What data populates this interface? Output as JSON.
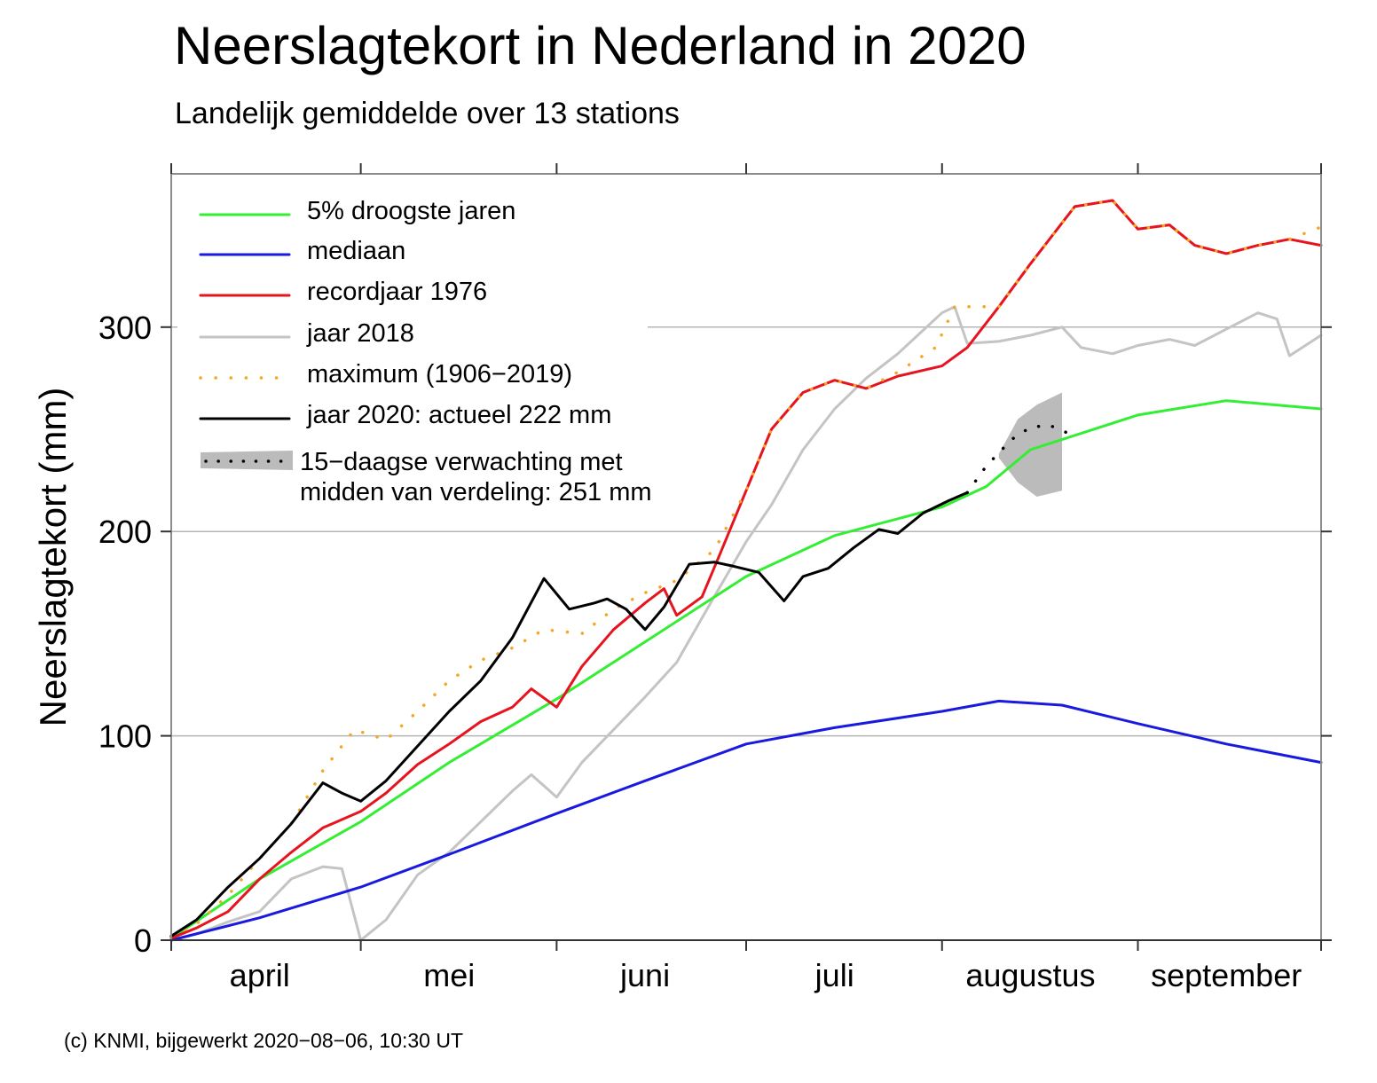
{
  "title": "Neerslagtekort in Nederland in 2020",
  "subtitle": "Landelijk gemiddelde over 13 stations",
  "footer": "(c) KNMI, bijgewerkt 2020−08−06, 10:30 UT",
  "colors": {
    "droogste": "#33ee33",
    "mediaan": "#1a1adf",
    "record": "#e6141e",
    "jaar2018": "#c4c4c4",
    "maximum": "#f5a623",
    "jaar2020": "#000000",
    "forecast_band": "#bbbbbb"
  },
  "chart_data": {
    "type": "line",
    "title": "Neerslagtekort in Nederland in 2020",
    "subtitle": "Landelijk gemiddelde over 13 stations",
    "ylabel": "Neerslagtekort (mm)",
    "xlabel": "",
    "x_unit": "date (2020)",
    "xlim": [
      "04-01",
      "09-30"
    ],
    "ylim": [
      0,
      375
    ],
    "yticks": [
      0,
      100,
      200,
      300
    ],
    "month_ticks": [
      "04-01",
      "05-01",
      "06-01",
      "07-01",
      "08-01",
      "09-01"
    ],
    "month_labels": [
      {
        "label": "april",
        "date": "04-15"
      },
      {
        "label": "mei",
        "date": "05-15"
      },
      {
        "label": "juni",
        "date": "06-15"
      },
      {
        "label": "juli",
        "date": "07-15"
      },
      {
        "label": "augustus",
        "date": "08-15"
      },
      {
        "label": "september",
        "date": "09-15"
      }
    ],
    "grid": true,
    "legend_position": "top-left",
    "legend": [
      {
        "key": "droogste",
        "label": "5% droogste jaren",
        "style": "solid"
      },
      {
        "key": "mediaan",
        "label": "mediaan",
        "style": "solid"
      },
      {
        "key": "record",
        "label": "recordjaar 1976",
        "style": "solid"
      },
      {
        "key": "jaar2018",
        "label": "jaar 2018",
        "style": "solid"
      },
      {
        "key": "maximum",
        "label": "maximum (1906−2019)",
        "style": "dotted"
      },
      {
        "key": "jaar2020",
        "label": "jaar 2020: actueel 222 mm",
        "style": "solid"
      },
      {
        "key": "forecast",
        "label": "15−daagse verwachting met",
        "label2": "midden van verdeling: 251 mm",
        "style": "band"
      }
    ],
    "series": [
      {
        "key": "droogste",
        "name": "5% droogste jaren",
        "points": [
          [
            "04-01",
            1
          ],
          [
            "04-15",
            30
          ],
          [
            "05-01",
            58
          ],
          [
            "05-15",
            87
          ],
          [
            "06-01",
            118
          ],
          [
            "06-15",
            146
          ],
          [
            "07-01",
            178
          ],
          [
            "07-15",
            198
          ],
          [
            "08-01",
            212
          ],
          [
            "08-08",
            222
          ],
          [
            "08-15",
            240
          ],
          [
            "09-01",
            257
          ],
          [
            "09-15",
            264
          ],
          [
            "09-30",
            260
          ]
        ]
      },
      {
        "key": "mediaan",
        "name": "mediaan",
        "points": [
          [
            "04-01",
            0
          ],
          [
            "04-15",
            11
          ],
          [
            "05-01",
            26
          ],
          [
            "05-15",
            42
          ],
          [
            "06-01",
            62
          ],
          [
            "06-15",
            78
          ],
          [
            "07-01",
            96
          ],
          [
            "07-15",
            104
          ],
          [
            "08-01",
            112
          ],
          [
            "08-10",
            117
          ],
          [
            "08-20",
            115
          ],
          [
            "09-01",
            106
          ],
          [
            "09-15",
            96
          ],
          [
            "09-30",
            87
          ]
        ]
      },
      {
        "key": "record",
        "name": "recordjaar 1976",
        "points": [
          [
            "04-01",
            1
          ],
          [
            "04-05",
            6
          ],
          [
            "04-10",
            14
          ],
          [
            "04-15",
            30
          ],
          [
            "04-20",
            43
          ],
          [
            "04-25",
            55
          ],
          [
            "05-01",
            63
          ],
          [
            "05-05",
            72
          ],
          [
            "05-10",
            86
          ],
          [
            "05-15",
            96
          ],
          [
            "05-20",
            107
          ],
          [
            "05-25",
            114
          ],
          [
            "05-28",
            123
          ],
          [
            "06-01",
            114
          ],
          [
            "06-05",
            134
          ],
          [
            "06-10",
            152
          ],
          [
            "06-15",
            165
          ],
          [
            "06-18",
            172
          ],
          [
            "06-20",
            159
          ],
          [
            "06-24",
            168
          ],
          [
            "06-27",
            190
          ],
          [
            "07-01",
            220
          ],
          [
            "07-05",
            250
          ],
          [
            "07-10",
            268
          ],
          [
            "07-15",
            274
          ],
          [
            "07-20",
            270
          ],
          [
            "07-25",
            276
          ],
          [
            "08-01",
            281
          ],
          [
            "08-05",
            290
          ],
          [
            "08-10",
            310
          ],
          [
            "08-15",
            331
          ],
          [
            "08-22",
            359
          ],
          [
            "08-28",
            362
          ],
          [
            "09-01",
            348
          ],
          [
            "09-06",
            350
          ],
          [
            "09-10",
            340
          ],
          [
            "09-15",
            336
          ],
          [
            "09-20",
            340
          ],
          [
            "09-25",
            343
          ],
          [
            "09-30",
            340
          ]
        ]
      },
      {
        "key": "jaar2018",
        "name": "jaar 2018",
        "points": [
          [
            "04-01",
            0
          ],
          [
            "04-05",
            3
          ],
          [
            "04-10",
            9
          ],
          [
            "04-15",
            14
          ],
          [
            "04-20",
            30
          ],
          [
            "04-25",
            36
          ],
          [
            "04-28",
            35
          ],
          [
            "05-01",
            0
          ],
          [
            "05-05",
            10
          ],
          [
            "05-10",
            32
          ],
          [
            "05-15",
            43
          ],
          [
            "05-20",
            58
          ],
          [
            "05-25",
            73
          ],
          [
            "05-28",
            81
          ],
          [
            "06-01",
            70
          ],
          [
            "06-05",
            87
          ],
          [
            "06-10",
            103
          ],
          [
            "06-15",
            119
          ],
          [
            "06-20",
            136
          ],
          [
            "06-25",
            163
          ],
          [
            "07-01",
            195
          ],
          [
            "07-05",
            213
          ],
          [
            "07-10",
            240
          ],
          [
            "07-15",
            260
          ],
          [
            "07-20",
            275
          ],
          [
            "07-25",
            287
          ],
          [
            "08-01",
            307
          ],
          [
            "08-03",
            310
          ],
          [
            "08-05",
            292
          ],
          [
            "08-10",
            293
          ],
          [
            "08-15",
            296
          ],
          [
            "08-20",
            300
          ],
          [
            "08-23",
            290
          ],
          [
            "08-28",
            287
          ],
          [
            "09-01",
            291
          ],
          [
            "09-06",
            294
          ],
          [
            "09-10",
            291
          ],
          [
            "09-15",
            299
          ],
          [
            "09-20",
            307
          ],
          [
            "09-23",
            304
          ],
          [
            "09-25",
            286
          ],
          [
            "09-30",
            296
          ]
        ]
      },
      {
        "key": "maximum",
        "name": "maximum (1906−2019)",
        "points": [
          [
            "04-01",
            2
          ],
          [
            "04-05",
            8
          ],
          [
            "04-10",
            22
          ],
          [
            "04-15",
            40
          ],
          [
            "04-20",
            57
          ],
          [
            "04-25",
            83
          ],
          [
            "04-30",
            103
          ],
          [
            "05-05",
            98
          ],
          [
            "05-10",
            112
          ],
          [
            "05-15",
            127
          ],
          [
            "05-20",
            137
          ],
          [
            "05-25",
            143
          ],
          [
            "05-30",
            152
          ],
          [
            "06-05",
            150
          ],
          [
            "06-10",
            162
          ],
          [
            "06-15",
            170
          ],
          [
            "06-20",
            176
          ],
          [
            "06-26",
            191
          ],
          [
            "07-01",
            220
          ],
          [
            "07-05",
            250
          ],
          [
            "07-10",
            268
          ],
          [
            "07-15",
            274
          ],
          [
            "07-20",
            270
          ],
          [
            "07-25",
            278
          ],
          [
            "07-31",
            290
          ],
          [
            "08-03",
            310
          ],
          [
            "08-10",
            310
          ],
          [
            "08-15",
            331
          ],
          [
            "08-22",
            359
          ],
          [
            "08-28",
            362
          ],
          [
            "09-01",
            348
          ],
          [
            "09-06",
            350
          ],
          [
            "09-10",
            340
          ],
          [
            "09-15",
            336
          ],
          [
            "09-20",
            340
          ],
          [
            "09-25",
            343
          ],
          [
            "09-30",
            349
          ]
        ]
      },
      {
        "key": "jaar2020",
        "name": "jaar 2020: actueel 222 mm",
        "points": [
          [
            "04-01",
            2
          ],
          [
            "04-05",
            10
          ],
          [
            "04-10",
            26
          ],
          [
            "04-15",
            40
          ],
          [
            "04-20",
            57
          ],
          [
            "04-25",
            77
          ],
          [
            "04-28",
            72
          ],
          [
            "05-01",
            68
          ],
          [
            "05-05",
            78
          ],
          [
            "05-10",
            95
          ],
          [
            "05-15",
            112
          ],
          [
            "05-20",
            127
          ],
          [
            "05-25",
            148
          ],
          [
            "05-30",
            177
          ],
          [
            "06-03",
            162
          ],
          [
            "06-07",
            165
          ],
          [
            "06-09",
            167
          ],
          [
            "06-12",
            162
          ],
          [
            "06-15",
            152
          ],
          [
            "06-18",
            163
          ],
          [
            "06-22",
            184
          ],
          [
            "06-26",
            185
          ],
          [
            "06-29",
            183
          ],
          [
            "07-03",
            180
          ],
          [
            "07-07",
            166
          ],
          [
            "07-10",
            178
          ],
          [
            "07-14",
            182
          ],
          [
            "07-18",
            192
          ],
          [
            "07-22",
            201
          ],
          [
            "07-25",
            199
          ],
          [
            "07-29",
            209
          ],
          [
            "08-02",
            215
          ],
          [
            "08-05",
            219
          ]
        ]
      },
      {
        "key": "forecast_mid",
        "name": "15−daagse verwachting",
        "style": "dotted",
        "points": [
          [
            "08-05",
            219
          ],
          [
            "08-08",
            232
          ],
          [
            "08-12",
            245
          ],
          [
            "08-15",
            251
          ],
          [
            "08-18",
            252
          ],
          [
            "08-21",
            248
          ]
        ]
      }
    ],
    "forecast_band": {
      "label": "15−daagse verwachting met midden van verdeling: 251 mm",
      "median": 251,
      "upper": [
        [
          "08-10",
          238
        ],
        [
          "08-13",
          255
        ],
        [
          "08-16",
          262
        ],
        [
          "08-20",
          268
        ]
      ],
      "lower": [
        [
          "08-10",
          236
        ],
        [
          "08-13",
          224
        ],
        [
          "08-16",
          217
        ],
        [
          "08-20",
          220
        ]
      ]
    }
  }
}
